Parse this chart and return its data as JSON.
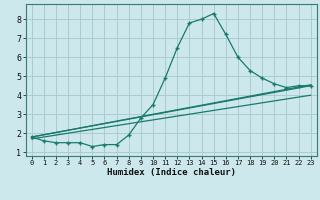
{
  "xlabel": "Humidex (Indice chaleur)",
  "bg_color": "#cce8ec",
  "grid_color": "#aaccd0",
  "line_color": "#1a7a6e",
  "xlim": [
    -0.5,
    23.5
  ],
  "ylim": [
    0.8,
    8.8
  ],
  "xticks": [
    0,
    1,
    2,
    3,
    4,
    5,
    6,
    7,
    8,
    9,
    10,
    11,
    12,
    13,
    14,
    15,
    16,
    17,
    18,
    19,
    20,
    21,
    22,
    23
  ],
  "yticks": [
    1,
    2,
    3,
    4,
    5,
    6,
    7,
    8
  ],
  "line1_x": [
    0,
    1,
    2,
    3,
    4,
    5,
    6,
    7,
    8,
    9,
    10,
    11,
    12,
    13,
    14,
    15,
    16,
    17,
    18,
    19,
    20,
    21,
    22,
    23
  ],
  "line1_y": [
    1.8,
    1.6,
    1.5,
    1.5,
    1.5,
    1.3,
    1.4,
    1.4,
    1.9,
    2.8,
    3.5,
    4.9,
    6.5,
    7.8,
    8.0,
    8.3,
    7.2,
    6.0,
    5.3,
    4.9,
    4.6,
    4.4,
    4.5,
    4.5
  ],
  "line2_x": [
    0,
    23
  ],
  "line2_y": [
    1.8,
    4.5
  ],
  "line3_x": [
    0,
    23
  ],
  "line3_y": [
    1.8,
    4.55
  ],
  "line4_x": [
    0,
    23
  ],
  "line4_y": [
    1.7,
    4.0
  ]
}
